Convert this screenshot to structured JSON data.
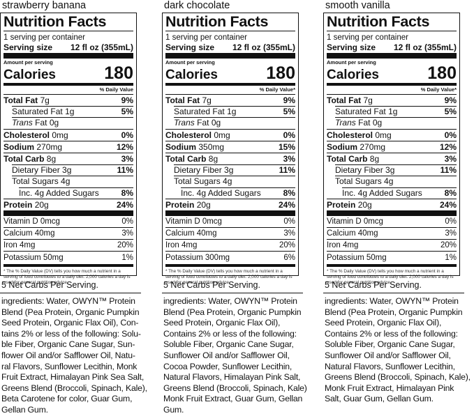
{
  "labels": [
    {
      "flavor": "strawberry banana",
      "title": "Nutrition Facts",
      "servings": "1 serving per container",
      "serving_size_label": "Serving size",
      "serving_size_value": "12 fl oz (355mL)",
      "amount_per": "Amount per serving",
      "calories_label": "Calories",
      "calories": "180",
      "dv_header": "% Daily Value",
      "total_fat": {
        "name": "Total Fat",
        "amount": "7g",
        "dv": "9%"
      },
      "sat_fat": {
        "name": "Saturated Fat",
        "amount": "1g",
        "dv": "5%"
      },
      "trans_fat": {
        "name": "Trans",
        "rest": "Fat 0g"
      },
      "cholesterol": {
        "name": "Cholesterol",
        "amount": "0mg",
        "dv": "0%"
      },
      "sodium": {
        "name": "Sodium",
        "amount": "270mg",
        "dv": "12%"
      },
      "total_carb": {
        "name": "Total Carb",
        "amount": "8g",
        "dv": "3%"
      },
      "fiber": {
        "name": "Dietary Fiber",
        "amount": "3g",
        "dv": "11%"
      },
      "total_sugars": {
        "name": "Total Sugars",
        "amount": "4g"
      },
      "added_sugars": {
        "name": "Inc. 4g Added Sugars",
        "dv": "8%"
      },
      "protein": {
        "name": "Protein",
        "amount": "20g",
        "dv": "24%"
      },
      "vitamin_d": {
        "name": "Vitamin D 0mcg",
        "dv": "0%"
      },
      "calcium": {
        "name": "Calcium 40mg",
        "dv": "3%"
      },
      "iron": {
        "name": "Iron 4mg",
        "dv": "20%"
      },
      "potassium": {
        "name": "Potassium 50mg",
        "dv": "1%"
      },
      "footnote": "* The % Daily Value (DV) tells you how much a nutrient in a serving of food contributes to a daily diet. 2,000 calories a day is used for general nutrition advice.",
      "net_carbs": "5 Net Carbs Per Serving.",
      "ingredients": [
        "ingredients: Water, OWYN™ Protein",
        "Blend (Pea Protein, Organic Pumpkin",
        "Seed Protein, Organic Flax Oil),  Con-",
        "tains 2% or less of the following: Solu-",
        "ble Fiber, Organic Cane Sugar, Sun-",
        "flower Oil and/or Safflower Oil, Natu-",
        "ral Flavors, Sunflower Lecithin, Monk",
        "Fruit Extract, Himalayan Pink Sea Salt,",
        "Greens Blend (Broccoli, Spinach, Kale),",
        "Beta Carotene for color, Guar Gum,",
        "Gellan Gum."
      ]
    },
    {
      "flavor": "dark chocolate",
      "title": "Nutrition Facts",
      "servings": "1 serving per container",
      "serving_size_label": "Serving size",
      "serving_size_value": "12 fl oz (355mL)",
      "amount_per": "Amount per serving",
      "calories_label": "Calories",
      "calories": "180",
      "dv_header": "% Daily Value*",
      "total_fat": {
        "name": "Total Fat",
        "amount": "7g",
        "dv": "9%"
      },
      "sat_fat": {
        "name": "Saturated Fat",
        "amount": "1g",
        "dv": "5%"
      },
      "trans_fat": {
        "name": "Trans",
        "rest": "Fat 0g"
      },
      "cholesterol": {
        "name": "Cholesterol",
        "amount": "0mg",
        "dv": "0%"
      },
      "sodium": {
        "name": "Sodium",
        "amount": "350mg",
        "dv": "15%"
      },
      "total_carb": {
        "name": "Total Carb",
        "amount": "8g",
        "dv": "3%"
      },
      "fiber": {
        "name": "Dietary Fiber",
        "amount": "3g",
        "dv": "11%"
      },
      "total_sugars": {
        "name": "Total Sugars",
        "amount": "4g"
      },
      "added_sugars": {
        "name": "Inc. 4g Added Sugars",
        "dv": "8%"
      },
      "protein": {
        "name": "Protein",
        "amount": "20g",
        "dv": "24%"
      },
      "vitamin_d": {
        "name": "Vitamin D 0mcg",
        "dv": "0%"
      },
      "calcium": {
        "name": "Calcium 40mg",
        "dv": "3%"
      },
      "iron": {
        "name": "Iron 4mg",
        "dv": "20%"
      },
      "potassium": {
        "name": "Potassium 300mg",
        "dv": "6%"
      },
      "footnote": "* The % Daily Value (DV) tells you how much a nutrient in a serving of food contributes to a daily diet. 2,000 calories a day is used for general nutrition advice.",
      "net_carbs": "5 Net Carbs Per Serving.",
      "ingredients": [
        "ingredients: Water, OWYN™ Protein",
        "Blend (Pea Protein, Organic Pumpkin",
        "Seed Protein, Organic Flax Oil),",
        "Contains 2% or less of the following:",
        "Soluble Fiber, Organic Cane Sugar,",
        "Sunflower Oil and/or Safflower Oil,",
        "Cocoa Powder, Sunflower Lecithin,",
        "Natural Flavors, Himalayan Pink Salt,",
        "Greens Blend (Broccoli, Spinach, Kale)",
        "Monk Fruit Extract, Guar Gum, Gellan",
        "Gum."
      ]
    },
    {
      "flavor": "smooth vanilla",
      "title": "Nutrition Facts",
      "servings": "1 serving per container",
      "serving_size_label": "Serving size",
      "serving_size_value": "12 fl oz (355mL)",
      "amount_per": "Amount per serving",
      "calories_label": "Calories",
      "calories": "180",
      "dv_header": "% Daily Value*",
      "total_fat": {
        "name": "Total Fat",
        "amount": "7g",
        "dv": "9%"
      },
      "sat_fat": {
        "name": "Saturated Fat",
        "amount": "1g",
        "dv": "5%"
      },
      "trans_fat": {
        "name": "Trans",
        "rest": "Fat 0g"
      },
      "cholesterol": {
        "name": "Cholesterol",
        "amount": "0mg",
        "dv": "0%"
      },
      "sodium": {
        "name": "Sodium",
        "amount": "270mg",
        "dv": "12%"
      },
      "total_carb": {
        "name": "Total Carb",
        "amount": "8g",
        "dv": "3%"
      },
      "fiber": {
        "name": "Dietary Fiber",
        "amount": "3g",
        "dv": "11%"
      },
      "total_sugars": {
        "name": "Total Sugars",
        "amount": "4g"
      },
      "added_sugars": {
        "name": "Inc. 4g Added Sugars",
        "dv": "8%"
      },
      "protein": {
        "name": "Protein",
        "amount": "20g",
        "dv": "24%"
      },
      "vitamin_d": {
        "name": "Vitamin D 0mcg",
        "dv": "0%"
      },
      "calcium": {
        "name": "Calcium 40mg",
        "dv": "3%"
      },
      "iron": {
        "name": "Iron 4mg",
        "dv": "20%"
      },
      "potassium": {
        "name": "Potassium 50mg",
        "dv": "1%"
      },
      "footnote": "* The % Daily Value (DV) tells you how much a nutrient in a serving of food contributes to a daily diet. 2,000 calories a day is used for general nutrition advice.",
      "net_carbs": "5 Net Carbs Per Serving.",
      "ingredients": [
        "ingredients: Water, OWYN™ Protein",
        "Blend (Pea Protein, Organic Pumpkin",
        "Seed Protein, Organic Flax Oil),",
        "Contains 2% or less of the following:",
        "Soluble Fiber, Organic Cane Sugar,",
        "Sunflower Oil and/or Safflower Oil,",
        "Natural Flavors, Sunflower Lecithin,",
        "Greens Blend (Broccoli, Spinach, Kale),",
        "Monk Fruit Extract, Himalayan Pink",
        "Salt, Guar Gum, Gellan Gum."
      ]
    }
  ]
}
